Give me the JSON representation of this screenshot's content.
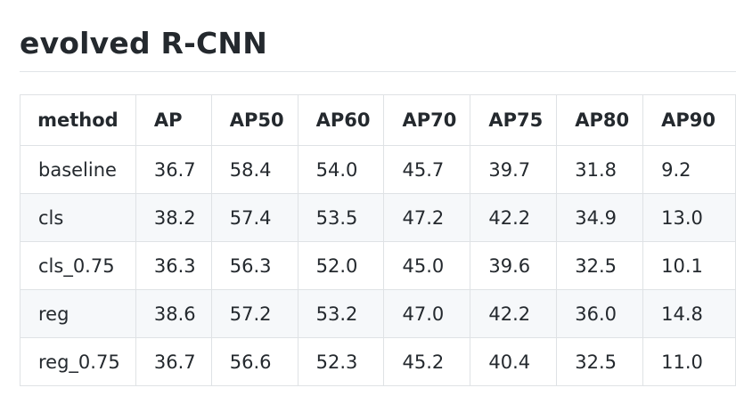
{
  "heading": "evolved R-CNN",
  "table": {
    "columns": [
      "method",
      "AP",
      "AP50",
      "AP60",
      "AP70",
      "AP75",
      "AP80",
      "AP90"
    ],
    "rows": [
      [
        "baseline",
        "36.7",
        "58.4",
        "54.0",
        "45.7",
        "39.7",
        "31.8",
        "9.2"
      ],
      [
        "cls",
        "38.2",
        "57.4",
        "53.5",
        "47.2",
        "42.2",
        "34.9",
        "13.0"
      ],
      [
        "cls_0.75",
        "36.3",
        "56.3",
        "52.0",
        "45.0",
        "39.6",
        "32.5",
        "10.1"
      ],
      [
        "reg",
        "38.6",
        "57.2",
        "53.2",
        "47.0",
        "42.2",
        "36.0",
        "14.8"
      ],
      [
        "reg_0.75",
        "36.7",
        "56.6",
        "52.3",
        "45.2",
        "40.4",
        "32.5",
        "11.0"
      ]
    ]
  }
}
